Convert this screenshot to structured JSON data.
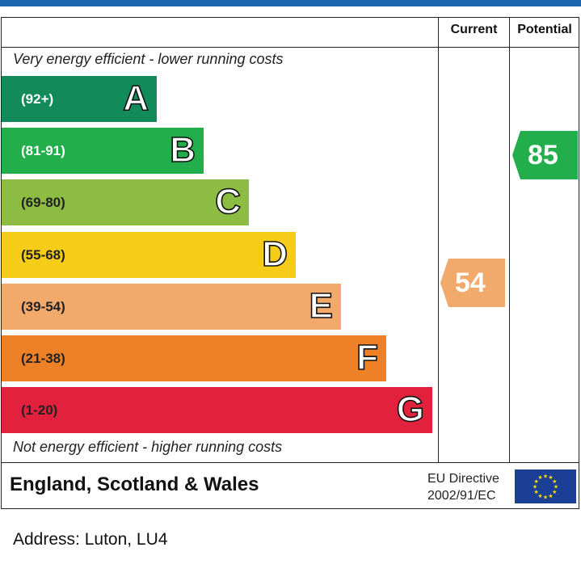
{
  "header": {
    "columns": {
      "current": "Current",
      "potential": "Potential"
    }
  },
  "notes": {
    "top": "Very energy efficient - lower running costs",
    "bottom": "Not energy efficient - higher running costs"
  },
  "bands": [
    {
      "letter": "A",
      "range": "(92+)",
      "color": "#138a5a",
      "range_color": "#ffffff"
    },
    {
      "letter": "B",
      "range": "(81-91)",
      "color": "#22ae4b",
      "range_color": "#ffffff"
    },
    {
      "letter": "C",
      "range": "(69-80)",
      "color": "#8cbc42",
      "range_color": "#222222"
    },
    {
      "letter": "D",
      "range": "(55-68)",
      "color": "#f5cc18",
      "range_color": "#222222"
    },
    {
      "letter": "E",
      "range": "(39-54)",
      "color": "#f2a96c",
      "range_color": "#222222"
    },
    {
      "letter": "F",
      "range": "(21-38)",
      "color": "#ee8128",
      "range_color": "#222222"
    },
    {
      "letter": "G",
      "range": "(1-20)",
      "color": "#e2213d",
      "range_color": "#222222"
    }
  ],
  "ratings": {
    "current": {
      "value": "54",
      "band": "E",
      "color": "#f2a96c"
    },
    "potential": {
      "value": "85",
      "band": "B",
      "color": "#22ae4b"
    }
  },
  "footer": {
    "region": "England, Scotland & Wales",
    "directive_line1": "EU Directive",
    "directive_line2": "2002/91/EC",
    "flag_icon": "eu-flag-icon"
  },
  "address": "Address: Luton, LU4"
}
